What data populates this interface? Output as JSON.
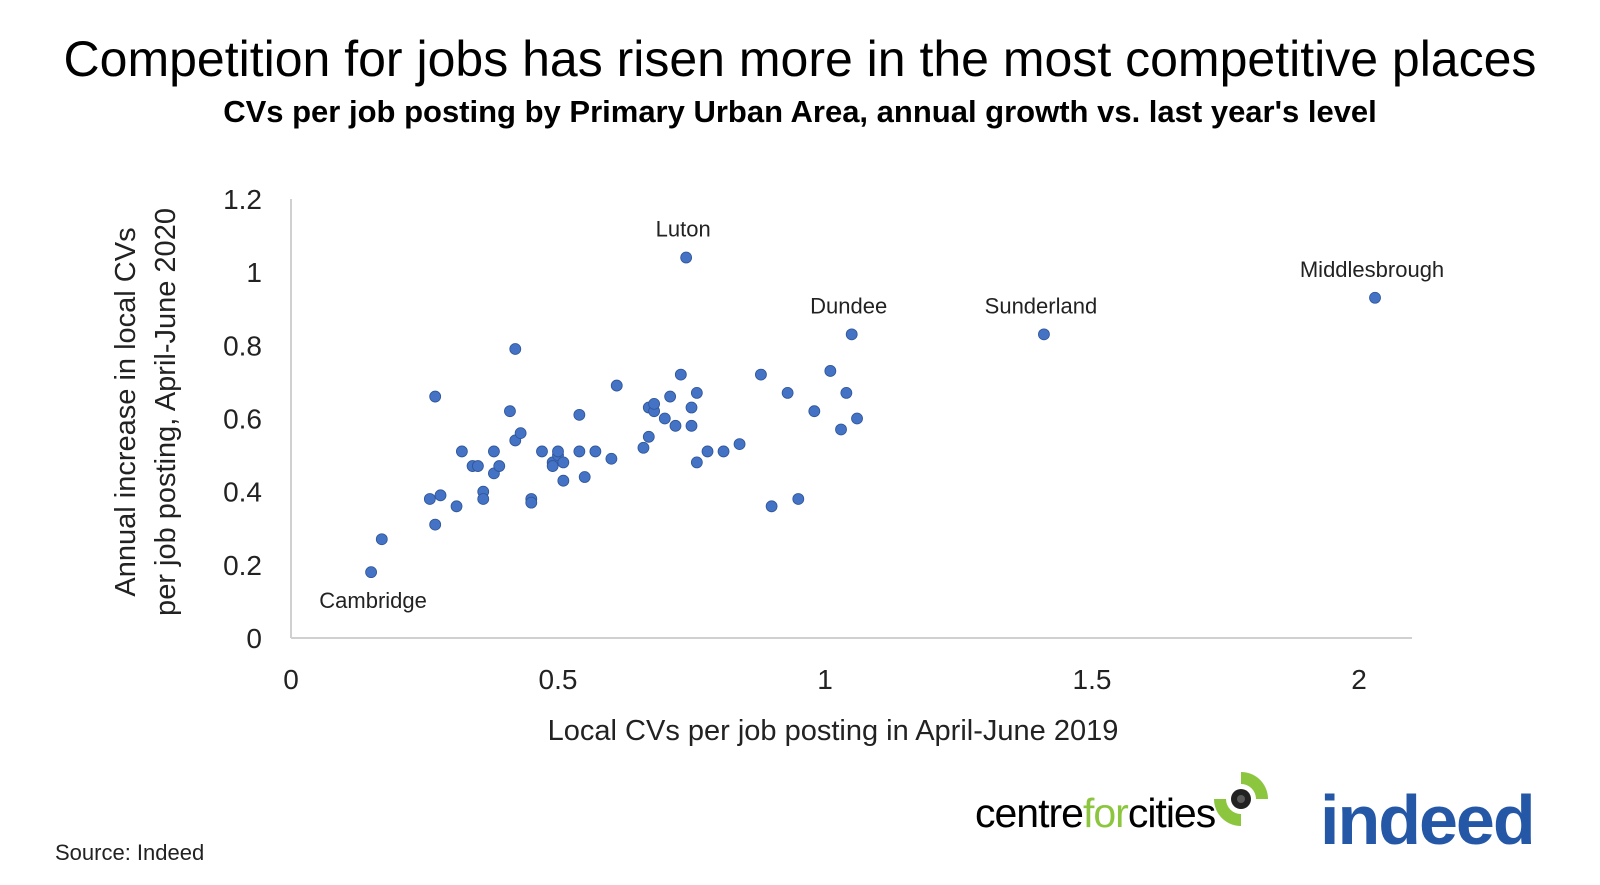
{
  "title": "Competition for jobs has risen more in the most competitive places",
  "subtitle": "CVs per job posting by Primary Urban Area, annual growth vs. last year's level",
  "source": "Source: Indeed",
  "logos": {
    "cfc": {
      "part1": "centre",
      "part2": "for",
      "part3": "cities"
    },
    "indeed": "indeed"
  },
  "colors": {
    "point": "#4472c4",
    "cfc_green": "#8cc63f",
    "indeed_blue": "#2557a7"
  },
  "chart_data": {
    "type": "scatter",
    "xlabel": "Local CVs per job posting in April-June 2019",
    "ylabel_lines": [
      "Annual increase in local CVs",
      "per job posting, April-June 2020"
    ],
    "xlim": [
      0,
      2.1
    ],
    "ylim": [
      0,
      1.2
    ],
    "x_ticks": [
      0,
      0.5,
      1,
      1.5,
      2
    ],
    "x_tick_labels": [
      "0",
      "0.5",
      "1",
      "1.5",
      "2"
    ],
    "y_ticks": [
      0,
      0.2,
      0.4,
      0.6,
      0.8,
      1.0,
      1.2
    ],
    "y_tick_labels": [
      "0",
      "0.2",
      "0.4",
      "0.6",
      "0.8",
      "1",
      "1.2"
    ],
    "grid": false,
    "legend": "none",
    "labeled_points": [
      {
        "label": "Cambridge",
        "x": 0.15,
        "y": 0.18
      },
      {
        "label": "Luton",
        "x": 0.74,
        "y": 1.04
      },
      {
        "label": "Dundee",
        "x": 1.05,
        "y": 0.83
      },
      {
        "label": "Sunderland",
        "x": 1.41,
        "y": 0.83
      },
      {
        "label": "Middlesbrough",
        "x": 2.03,
        "y": 0.93
      }
    ],
    "points": [
      [
        0.15,
        0.18
      ],
      [
        0.17,
        0.27
      ],
      [
        0.26,
        0.38
      ],
      [
        0.27,
        0.31
      ],
      [
        0.28,
        0.39
      ],
      [
        0.27,
        0.66
      ],
      [
        0.31,
        0.36
      ],
      [
        0.32,
        0.51
      ],
      [
        0.34,
        0.47
      ],
      [
        0.35,
        0.47
      ],
      [
        0.36,
        0.4
      ],
      [
        0.36,
        0.38
      ],
      [
        0.38,
        0.45
      ],
      [
        0.38,
        0.51
      ],
      [
        0.39,
        0.47
      ],
      [
        0.41,
        0.62
      ],
      [
        0.42,
        0.54
      ],
      [
        0.43,
        0.56
      ],
      [
        0.42,
        0.79
      ],
      [
        0.45,
        0.38
      ],
      [
        0.45,
        0.37
      ],
      [
        0.47,
        0.51
      ],
      [
        0.49,
        0.48
      ],
      [
        0.49,
        0.47
      ],
      [
        0.5,
        0.5
      ],
      [
        0.5,
        0.51
      ],
      [
        0.51,
        0.48
      ],
      [
        0.51,
        0.43
      ],
      [
        0.54,
        0.61
      ],
      [
        0.54,
        0.51
      ],
      [
        0.55,
        0.44
      ],
      [
        0.57,
        0.51
      ],
      [
        0.6,
        0.49
      ],
      [
        0.61,
        0.69
      ],
      [
        0.66,
        0.52
      ],
      [
        0.67,
        0.55
      ],
      [
        0.67,
        0.63
      ],
      [
        0.68,
        0.62
      ],
      [
        0.68,
        0.64
      ],
      [
        0.7,
        0.6
      ],
      [
        0.71,
        0.66
      ],
      [
        0.72,
        0.58
      ],
      [
        0.73,
        0.72
      ],
      [
        0.75,
        0.63
      ],
      [
        0.75,
        0.58
      ],
      [
        0.76,
        0.67
      ],
      [
        0.76,
        0.48
      ],
      [
        0.78,
        0.51
      ],
      [
        0.74,
        1.04
      ],
      [
        0.81,
        0.51
      ],
      [
        0.84,
        0.53
      ],
      [
        0.88,
        0.72
      ],
      [
        0.9,
        0.36
      ],
      [
        0.93,
        0.67
      ],
      [
        0.95,
        0.38
      ],
      [
        0.98,
        0.62
      ],
      [
        1.01,
        0.73
      ],
      [
        1.03,
        0.57
      ],
      [
        1.04,
        0.67
      ],
      [
        1.06,
        0.6
      ],
      [
        1.05,
        0.83
      ],
      [
        1.41,
        0.83
      ],
      [
        2.03,
        0.93
      ]
    ]
  }
}
